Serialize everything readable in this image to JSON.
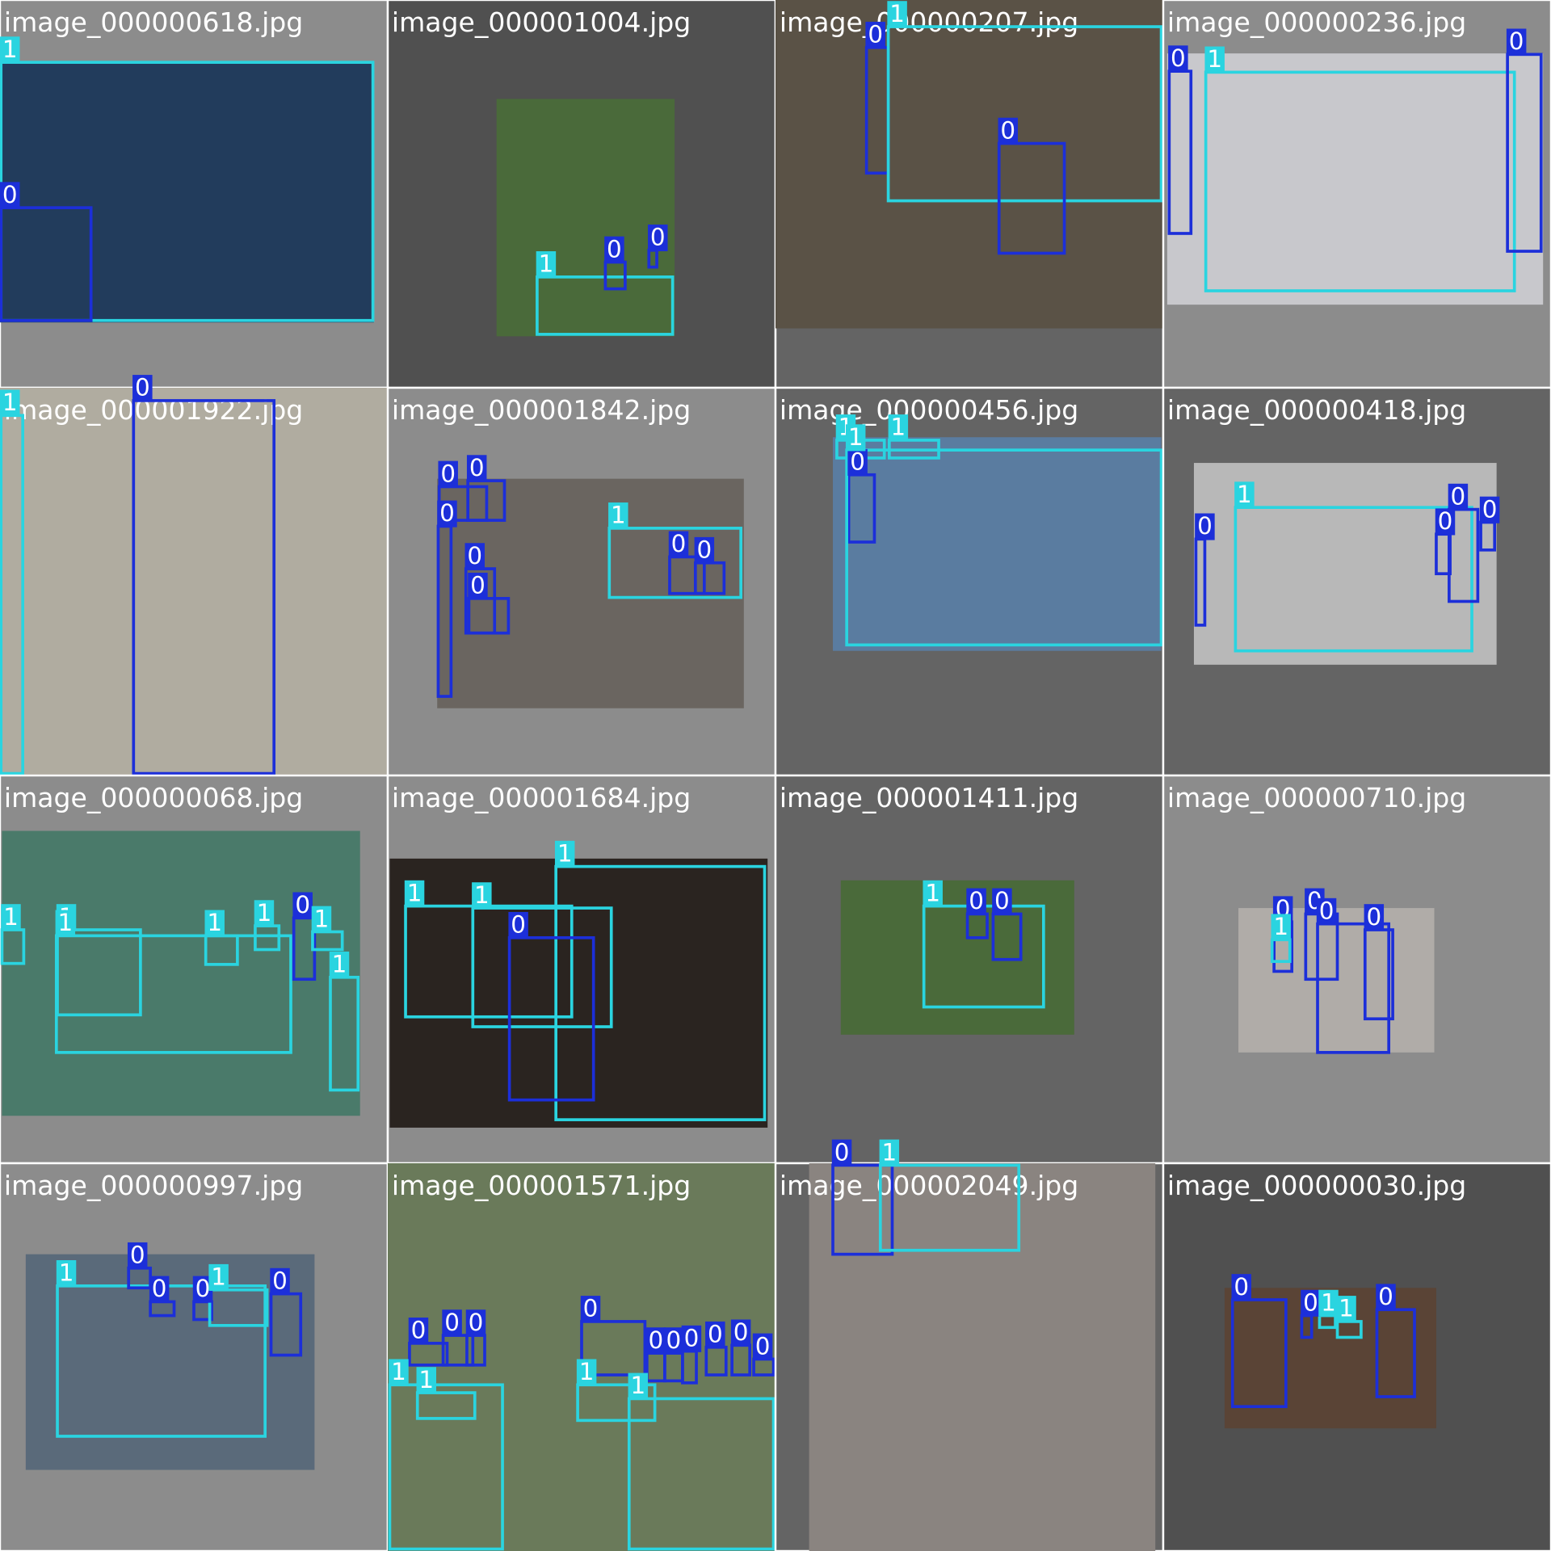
{
  "class_colors": {
    "0": "#1c2fd9",
    "1": "#2ad4e0"
  },
  "tiles": [
    {
      "filename": "image_000000618.jpg",
      "boxes": [
        {
          "label": "1"
        },
        {
          "label": "0"
        }
      ]
    },
    {
      "filename": "image_000001004.jpg",
      "boxes": [
        {
          "label": "1"
        },
        {
          "label": "0"
        },
        {
          "label": "0"
        }
      ]
    },
    {
      "filename": "image_000000207.jpg",
      "boxes": [
        {
          "label": "0"
        },
        {
          "label": "1"
        },
        {
          "label": "0"
        }
      ]
    },
    {
      "filename": "image_000000236.jpg",
      "boxes": [
        {
          "label": "0"
        },
        {
          "label": "1"
        },
        {
          "label": "0"
        }
      ]
    },
    {
      "filename": "image_000001922.jpg",
      "boxes": [
        {
          "label": "1"
        },
        {
          "label": "0"
        }
      ]
    },
    {
      "filename": "image_000001842.jpg",
      "boxes": [
        {
          "label": "0"
        },
        {
          "label": "0"
        },
        {
          "label": "0"
        },
        {
          "label": "0"
        },
        {
          "label": "0"
        },
        {
          "label": "1"
        },
        {
          "label": "0"
        },
        {
          "label": "0"
        }
      ]
    },
    {
      "filename": "image_000000456.jpg",
      "boxes": [
        {
          "label": "1"
        },
        {
          "label": "1"
        },
        {
          "label": "0"
        },
        {
          "label": "1"
        }
      ]
    },
    {
      "filename": "image_000000418.jpg",
      "boxes": [
        {
          "label": "1"
        },
        {
          "label": "0"
        },
        {
          "label": "0"
        },
        {
          "label": "0"
        },
        {
          "label": "0"
        }
      ]
    },
    {
      "filename": "image_000000068.jpg",
      "boxes": [
        {
          "label": "1"
        },
        {
          "label": "1"
        },
        {
          "label": "1"
        },
        {
          "label": "1"
        },
        {
          "label": "1"
        },
        {
          "label": "0"
        },
        {
          "label": "1"
        },
        {
          "label": "1"
        }
      ]
    },
    {
      "filename": "image_000001684.jpg",
      "boxes": [
        {
          "label": "1"
        },
        {
          "label": "1"
        },
        {
          "label": "1"
        },
        {
          "label": "0"
        }
      ]
    },
    {
      "filename": "image_000001411.jpg",
      "boxes": [
        {
          "label": "1"
        },
        {
          "label": "0"
        },
        {
          "label": "0"
        }
      ]
    },
    {
      "filename": "image_000000710.jpg",
      "boxes": [
        {
          "label": "0"
        },
        {
          "label": "1"
        },
        {
          "label": "0"
        },
        {
          "label": "0"
        },
        {
          "label": "0"
        }
      ]
    },
    {
      "filename": "image_000000997.jpg",
      "boxes": [
        {
          "label": "1"
        },
        {
          "label": "0"
        },
        {
          "label": "0"
        },
        {
          "label": "0"
        },
        {
          "label": "0"
        },
        {
          "label": "1"
        }
      ]
    },
    {
      "filename": "image_000001571.jpg",
      "boxes": [
        {
          "label": "1"
        },
        {
          "label": "1"
        },
        {
          "label": "0"
        },
        {
          "label": "0"
        },
        {
          "label": "0"
        },
        {
          "label": "0"
        },
        {
          "label": "1"
        },
        {
          "label": "1"
        },
        {
          "label": "0"
        },
        {
          "label": "0"
        },
        {
          "label": "0"
        },
        {
          "label": "0"
        },
        {
          "label": "0"
        },
        {
          "label": "0"
        }
      ]
    },
    {
      "filename": "image_000002049.jpg",
      "boxes": [
        {
          "label": "0"
        },
        {
          "label": "1"
        }
      ]
    },
    {
      "filename": "image_000000030.jpg",
      "boxes": [
        {
          "label": "0"
        },
        {
          "label": "0"
        },
        {
          "label": "1"
        },
        {
          "label": "1"
        },
        {
          "label": "0"
        }
      ]
    }
  ]
}
